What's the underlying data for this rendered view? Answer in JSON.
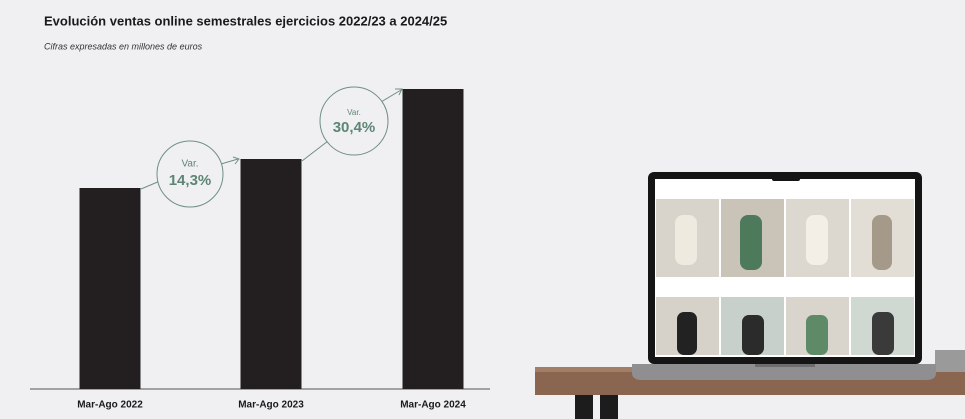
{
  "chart_data": {
    "type": "bar",
    "title": "Evolución ventas online semestrales ejercicios 2022/23 a 2024/25",
    "subtitle": "Cifras expresadas en millones de euros",
    "categories": [
      "Mar-Ago 2022",
      "Mar-Ago 2023",
      "Mar-Ago 2024"
    ],
    "values": [
      201,
      230,
      300
    ],
    "color": "#231f20",
    "ylim": [
      0,
      300
    ],
    "annotations": [
      {
        "title": "Var.",
        "text": "14,3%"
      },
      {
        "title": "Var.",
        "text": "30,4%"
      }
    ]
  }
}
